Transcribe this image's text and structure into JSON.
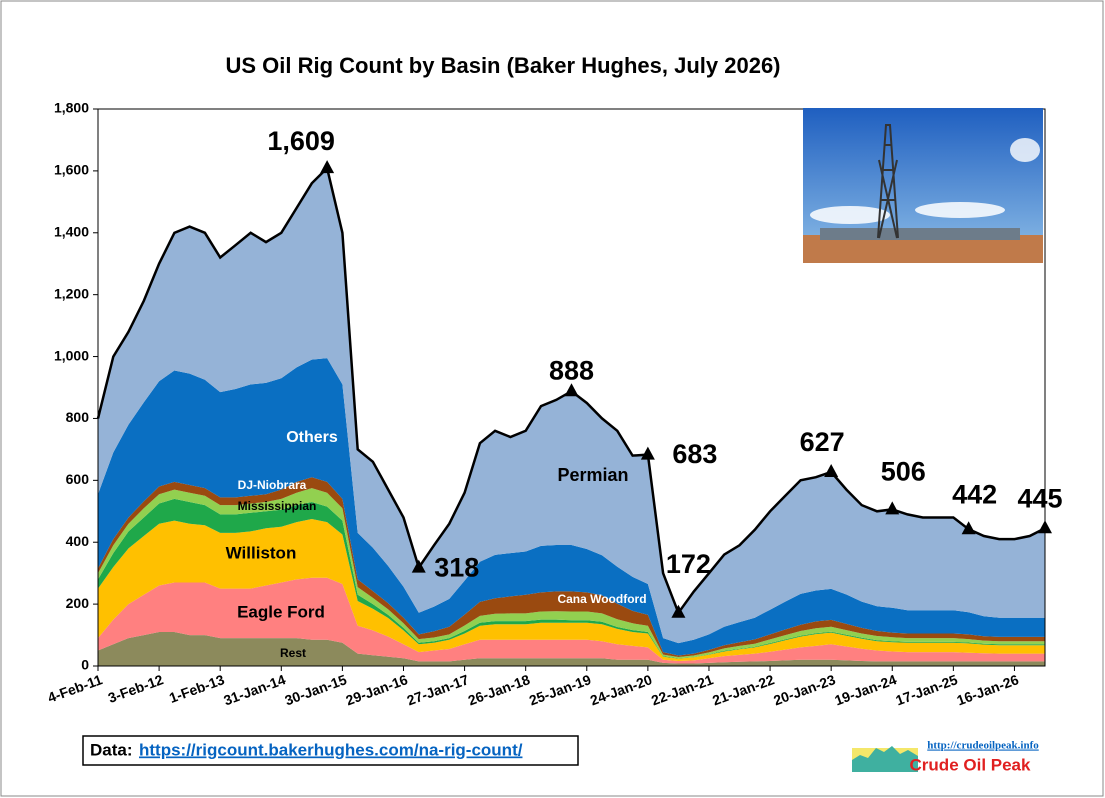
{
  "chart_data": {
    "type": "stacked-area",
    "title": "US Oil Rig Count by Basin (Baker Hughes, July 2026)",
    "categories": [
      "4-Feb-11",
      null,
      null,
      null,
      "3-Feb-12",
      null,
      null,
      null,
      "1-Feb-13",
      null,
      null,
      null,
      "31-Jan-14",
      null,
      null,
      null,
      "30-Jan-15",
      null,
      null,
      null,
      "29-Jan-16",
      null,
      null,
      null,
      "27-Jan-17",
      null,
      null,
      null,
      "26-Jan-18",
      null,
      null,
      null,
      "25-Jan-19",
      null,
      null,
      null,
      "24-Jan-20",
      null,
      null,
      null,
      "22-Jan-21",
      null,
      null,
      null,
      "21-Jan-22",
      null,
      null,
      null,
      "20-Jan-23",
      null,
      null,
      null,
      "19-Jan-24",
      null,
      null,
      null,
      "17-Jan-25",
      null,
      null,
      null,
      "16-Jan-26",
      null,
      null
    ],
    "series": [
      {
        "name": "Rest",
        "color": "#8c8a5c",
        "values": [
          50,
          70,
          90,
          100,
          110,
          110,
          100,
          100,
          90,
          90,
          90,
          90,
          90,
          90,
          85,
          85,
          75,
          40,
          35,
          30,
          25,
          15,
          15,
          15,
          20,
          25,
          25,
          25,
          25,
          25,
          25,
          25,
          25,
          25,
          20,
          20,
          20,
          10,
          8,
          8,
          10,
          12,
          14,
          15,
          16,
          18,
          20,
          20,
          20,
          18,
          16,
          15,
          15,
          15,
          15,
          15,
          15,
          15,
          15,
          15,
          15,
          15,
          15
        ]
      },
      {
        "name": "Eagle Ford",
        "color": "#ff8080",
        "values": [
          40,
          80,
          110,
          130,
          150,
          160,
          170,
          170,
          160,
          160,
          160,
          170,
          180,
          190,
          200,
          200,
          190,
          90,
          80,
          65,
          45,
          30,
          35,
          40,
          50,
          60,
          60,
          60,
          60,
          60,
          60,
          60,
          60,
          55,
          50,
          45,
          40,
          10,
          8,
          10,
          15,
          20,
          22,
          25,
          30,
          35,
          40,
          45,
          50,
          45,
          40,
          35,
          32,
          30,
          30,
          30,
          30,
          28,
          26,
          25,
          25,
          25,
          25
        ]
      },
      {
        "name": "Williston",
        "color": "#ffc000",
        "values": [
          160,
          170,
          180,
          190,
          200,
          200,
          190,
          185,
          180,
          180,
          185,
          185,
          180,
          185,
          190,
          180,
          160,
          80,
          70,
          60,
          45,
          25,
          25,
          30,
          35,
          45,
          50,
          50,
          50,
          55,
          55,
          55,
          55,
          55,
          50,
          45,
          45,
          10,
          8,
          10,
          12,
          15,
          18,
          20,
          25,
          30,
          35,
          38,
          38,
          35,
          32,
          30,
          30,
          30,
          30,
          30,
          30,
          30,
          28,
          27,
          27,
          27,
          27
        ]
      },
      {
        "name": "Mississippian",
        "color": "#1fa84a",
        "values": [
          30,
          45,
          55,
          60,
          65,
          70,
          70,
          65,
          60,
          60,
          60,
          55,
          55,
          55,
          55,
          50,
          45,
          20,
          15,
          10,
          8,
          5,
          5,
          5,
          8,
          10,
          10,
          10,
          10,
          10,
          10,
          8,
          8,
          8,
          6,
          6,
          5,
          2,
          1,
          1,
          1,
          2,
          2,
          2,
          3,
          3,
          3,
          3,
          3,
          3,
          3,
          3,
          3,
          3,
          3,
          3,
          3,
          3,
          3,
          3,
          3,
          3,
          3
        ]
      },
      {
        "name": "DJ-Niobrara",
        "color": "#92d050",
        "values": [
          20,
          25,
          25,
          30,
          30,
          30,
          30,
          30,
          30,
          30,
          30,
          30,
          35,
          40,
          45,
          45,
          40,
          25,
          20,
          18,
          15,
          12,
          12,
          12,
          18,
          22,
          24,
          25,
          25,
          26,
          27,
          28,
          28,
          27,
          25,
          22,
          20,
          5,
          4,
          5,
          6,
          8,
          9,
          10,
          12,
          14,
          15,
          16,
          16,
          15,
          14,
          14,
          13,
          12,
          12,
          12,
          12,
          11,
          10,
          10,
          10,
          10,
          10
        ]
      },
      {
        "name": "Cana Woodford",
        "color": "#9a4a10",
        "values": [
          15,
          20,
          20,
          22,
          25,
          25,
          25,
          25,
          25,
          25,
          25,
          25,
          30,
          35,
          35,
          35,
          30,
          25,
          22,
          20,
          18,
          15,
          20,
          25,
          35,
          45,
          50,
          55,
          60,
          62,
          64,
          65,
          62,
          58,
          50,
          40,
          35,
          8,
          5,
          6,
          8,
          10,
          12,
          14,
          16,
          18,
          20,
          22,
          22,
          20,
          18,
          16,
          15,
          15,
          15,
          15,
          15,
          15,
          14,
          14,
          14,
          14,
          14
        ]
      },
      {
        "name": "Others",
        "color": "#0a6fc2",
        "values": [
          240,
          280,
          300,
          320,
          340,
          360,
          360,
          350,
          340,
          350,
          360,
          360,
          360,
          370,
          380,
          400,
          370,
          150,
          140,
          120,
          100,
          70,
          80,
          90,
          110,
          130,
          140,
          140,
          140,
          150,
          150,
          150,
          140,
          130,
          120,
          110,
          100,
          45,
          40,
          45,
          50,
          60,
          65,
          70,
          80,
          90,
          100,
          100,
          100,
          95,
          85,
          80,
          80,
          75,
          75,
          75,
          75,
          72,
          65,
          62,
          62,
          62,
          62
        ]
      },
      {
        "name": "Permian",
        "color": "#95b3d7",
        "values": [
          245,
          310,
          300,
          328,
          380,
          445,
          475,
          475,
          435,
          465,
          490,
          455,
          470,
          515,
          570,
          614,
          490,
          270,
          278,
          247,
          224,
          146,
          198,
          243,
          284,
          383,
          401,
          375,
          390,
          452,
          469,
          497,
          472,
          442,
          439,
          392,
          418,
          210,
          98,
          155,
          198,
          233,
          248,
          284,
          318,
          342,
          367,
          366,
          378,
          339,
          312,
          307,
          318,
          310,
          300,
          300,
          300,
          268,
          259,
          254,
          254,
          264,
          289
        ]
      }
    ],
    "markers": {
      "values": [
        null,
        null,
        null,
        null,
        null,
        null,
        null,
        null,
        null,
        null,
        null,
        null,
        null,
        null,
        null,
        1609,
        null,
        null,
        null,
        null,
        null,
        318,
        null,
        null,
        null,
        null,
        null,
        null,
        null,
        null,
        null,
        888,
        null,
        null,
        null,
        null,
        683,
        null,
        172,
        null,
        null,
        null,
        null,
        null,
        null,
        null,
        null,
        null,
        627,
        null,
        null,
        null,
        506,
        null,
        null,
        null,
        null,
        442,
        null,
        null,
        null,
        null,
        445
      ],
      "value_labels": [
        null,
        null,
        null,
        null,
        null,
        null,
        null,
        null,
        null,
        null,
        null,
        null,
        null,
        null,
        null,
        "1,609",
        null,
        null,
        null,
        null,
        null,
        "318",
        null,
        null,
        null,
        null,
        null,
        null,
        null,
        null,
        null,
        "888",
        null,
        null,
        null,
        null,
        "683",
        null,
        "172",
        null,
        null,
        null,
        null,
        null,
        null,
        null,
        null,
        null,
        "627",
        null,
        null,
        null,
        "506",
        null,
        null,
        null,
        null,
        "442",
        null,
        null,
        null,
        null,
        "445"
      ]
    },
    "ylim": [
      0,
      1800
    ],
    "yticks": [
      0,
      200,
      400,
      600,
      800,
      {
        "value": 1000,
        "label": "1,000"
      },
      {
        "value": 1200,
        "label": "1,200"
      },
      {
        "value": 1400,
        "label": "1,400"
      },
      {
        "value": 1600,
        "label": "1,600"
      },
      {
        "value": 1800,
        "label": "1,800"
      }
    ],
    "grid": false,
    "source_label": "Data:",
    "source_url": "https://rigcount.bakerhughes.com/na-rig-count/",
    "logo_url": "http://crudeoilpeak.info",
    "logo_name": "Crude Oil Peak"
  }
}
